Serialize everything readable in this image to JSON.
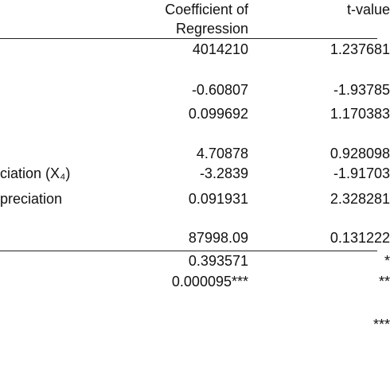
{
  "table": {
    "header": {
      "coefficient": [
        "Coefficient of",
        "Regression"
      ],
      "t_value": "t-value"
    },
    "rows": [
      {
        "coefficient": "4014210",
        "t_value": "1.237681"
      },
      {
        "coefficient": "-0.60807",
        "t_value": "-1.93785"
      },
      {
        "coefficient": "0.099692",
        "t_value": "1.170383"
      },
      {
        "coefficient": "4.70878",
        "t_value": "0.928098"
      },
      {
        "label": "ciation (X₄)",
        "coefficient": "-3.2839",
        "t_value": "-1.91703"
      },
      {
        "label": "preciation",
        "coefficient": "0.091931",
        "t_value": "2.328281"
      },
      {
        "coefficient": "87998.09",
        "t_value": "0.131222"
      }
    ],
    "footer": [
      {
        "coefficient": "0.393571",
        "t_value": "*"
      },
      {
        "coefficient": "0.000095***",
        "t_value": "**"
      },
      {
        "t_value": "***"
      }
    ]
  }
}
